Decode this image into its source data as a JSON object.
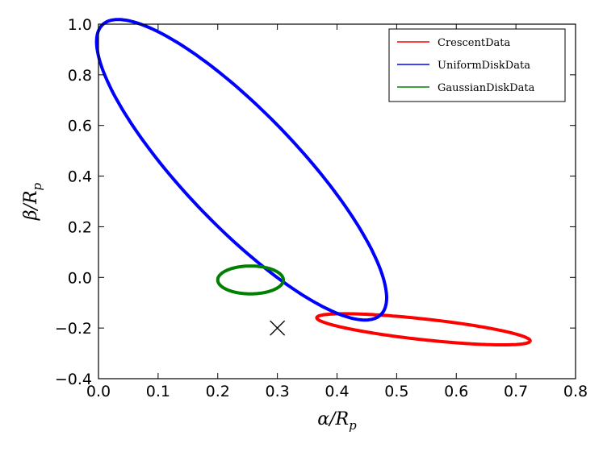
{
  "chart_data": {
    "type": "line",
    "title": "",
    "xlabel": "α/R",
    "xlabel_sub": "p",
    "ylabel": "β/R",
    "ylabel_sub": "p",
    "xlim": [
      0.0,
      0.8
    ],
    "ylim": [
      -0.4,
      1.0
    ],
    "x_ticks": [
      0.0,
      0.1,
      0.2,
      0.3,
      0.4,
      0.5,
      0.6,
      0.7,
      0.8
    ],
    "x_tick_labels": [
      "0.0",
      "0.1",
      "0.2",
      "0.3",
      "0.4",
      "0.5",
      "0.6",
      "0.7",
      "0.8"
    ],
    "y_ticks": [
      -0.4,
      -0.2,
      0.0,
      0.2,
      0.4,
      0.6,
      0.8,
      1.0
    ],
    "y_tick_labels": [
      "−0.4",
      "−0.2",
      "0.0",
      "0.2",
      "0.4",
      "0.6",
      "0.8",
      "1.0"
    ],
    "grid": false,
    "legend": "top-right",
    "series": [
      {
        "name": "CrescentData",
        "color": "#ff0000",
        "shape": "ellipse",
        "center": [
          0.545,
          -0.205
        ],
        "semi_major": 0.185,
        "semi_minor": 0.04,
        "angle_deg": -15
      },
      {
        "name": "UniformDiskData",
        "color": "#0000ff",
        "shape": "ellipse",
        "center": [
          0.24,
          0.425
        ],
        "semi_major": 0.63,
        "semi_minor": 0.12,
        "angle_deg": -70
      },
      {
        "name": "GaussianDiskData",
        "color": "#008000",
        "shape": "ellipse",
        "center": [
          0.255,
          -0.01
        ],
        "semi_major": 0.055,
        "semi_minor": 0.055,
        "angle_deg": 0
      }
    ],
    "marker": {
      "shape": "x",
      "x": 0.3,
      "y": -0.2,
      "color": "#000000"
    }
  }
}
